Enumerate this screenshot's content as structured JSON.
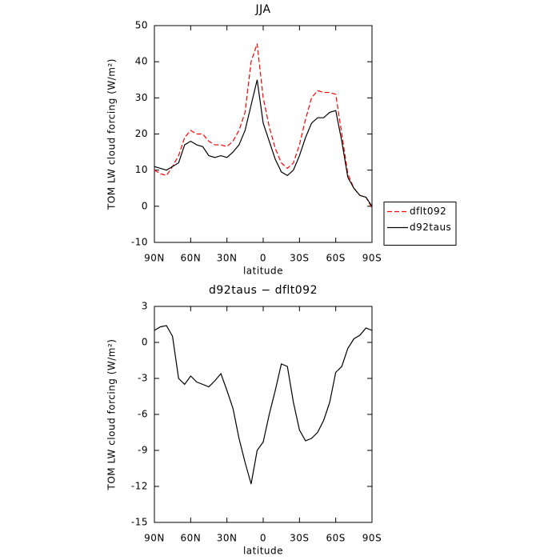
{
  "chart_data": [
    {
      "type": "line",
      "title": "JJA",
      "xlabel": "latitude",
      "ylabel": "TOM LW cloud forcing (W/m²)",
      "x": [
        90,
        85,
        80,
        75,
        70,
        65,
        60,
        55,
        50,
        45,
        40,
        35,
        30,
        25,
        20,
        15,
        10,
        5,
        0,
        -5,
        -10,
        -15,
        -20,
        -25,
        -30,
        -35,
        -40,
        -45,
        -50,
        -55,
        -60,
        -65,
        -70,
        -75,
        -80,
        -85,
        -90
      ],
      "series": [
        {
          "name": "dflt092",
          "color": "#ff0000",
          "style": "dashed",
          "values": [
            10,
            9,
            8.5,
            11,
            14,
            19,
            21,
            20,
            20,
            18,
            17,
            17,
            16.5,
            18,
            21,
            26,
            40,
            45,
            30,
            22,
            16,
            12,
            10.5,
            12,
            17,
            24,
            30,
            32,
            31.5,
            31.5,
            31,
            20,
            9,
            5,
            3,
            2.5,
            -0.5
          ]
        },
        {
          "name": "d92taus",
          "color": "#000000",
          "style": "solid",
          "values": [
            11,
            10.5,
            10,
            11,
            12,
            17,
            18,
            17,
            16.5,
            14,
            13.5,
            14,
            13.5,
            15,
            17,
            21,
            28,
            35,
            23,
            18,
            13,
            9.5,
            8.5,
            10,
            14,
            19,
            23,
            24.5,
            24.5,
            26,
            26.5,
            18,
            8,
            5,
            3,
            2.5,
            0
          ]
        }
      ],
      "xlim": [
        90,
        -90
      ],
      "xticks": [
        {
          "value": 90,
          "label": "90N"
        },
        {
          "value": 60,
          "label": "60N"
        },
        {
          "value": 30,
          "label": "30N"
        },
        0,
        {
          "value": -30,
          "label": "30S"
        },
        {
          "value": -60,
          "label": "60S"
        },
        {
          "value": -90,
          "label": "90S"
        }
      ],
      "ylim": [
        -10,
        50
      ],
      "yticks": [
        -10,
        0,
        10,
        20,
        30,
        40,
        50
      ],
      "legend": "right"
    },
    {
      "type": "line",
      "title": "d92taus − dflt092",
      "xlabel": "latitude",
      "ylabel": "TOM LW cloud forcing (W/m²)",
      "x": [
        90,
        85,
        80,
        75,
        70,
        65,
        60,
        55,
        50,
        45,
        40,
        35,
        30,
        25,
        20,
        15,
        10,
        5,
        0,
        -5,
        -10,
        -15,
        -20,
        -25,
        -30,
        -35,
        -40,
        -45,
        -50,
        -55,
        -60,
        -65,
        -70,
        -75,
        -80,
        -85,
        -90
      ],
      "series": [
        {
          "color": "#000000",
          "style": "solid",
          "values": [
            1,
            1.3,
            1.4,
            0.5,
            -3,
            -3.5,
            -2.8,
            -3.3,
            -3.5,
            -3.7,
            -3.2,
            -2.6,
            -4,
            -5.5,
            -8,
            -10,
            -11.8,
            -9,
            -8.3,
            -6,
            -4,
            -1.8,
            -2,
            -5,
            -7.3,
            -8.2,
            -8,
            -7.5,
            -6.5,
            -5,
            -2.5,
            -2,
            -0.5,
            0.3,
            0.6,
            1.2,
            1
          ]
        }
      ],
      "xlim": [
        90,
        -90
      ],
      "xticks": [
        {
          "value": 90,
          "label": "90N"
        },
        {
          "value": 60,
          "label": "60N"
        },
        {
          "value": 30,
          "label": "30N"
        },
        0,
        {
          "value": -30,
          "label": "30S"
        },
        {
          "value": -60,
          "label": "60S"
        },
        {
          "value": -90,
          "label": "90S"
        }
      ],
      "ylim": [
        -15,
        3
      ],
      "yticks": [
        -15,
        -12,
        -9,
        -6,
        -3,
        0,
        3
      ]
    }
  ]
}
